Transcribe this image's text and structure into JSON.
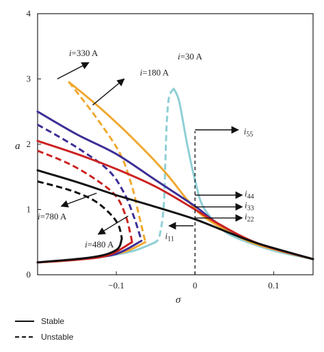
{
  "chart_data": {
    "type": "line",
    "title": "",
    "xlabel": "σ",
    "ylabel": "a",
    "xlim": [
      -0.2,
      0.15
    ],
    "ylim": [
      0,
      4
    ],
    "xticks": [
      -0.1,
      0,
      0.1
    ],
    "xtick_labels": [
      "−0.1",
      "0",
      "0.1"
    ],
    "yticks": [
      0,
      1,
      2,
      3,
      4
    ],
    "ytick_labels": [
      "0",
      "1",
      "2",
      "3",
      "4"
    ],
    "grid": false,
    "legend_position": "bottom-left",
    "legend": [
      {
        "label": "Stable",
        "style": "solid"
      },
      {
        "label": "Unstable",
        "style": "dashed"
      }
    ],
    "series": [
      {
        "current": "i=30 A",
        "color": "#8fcfd6",
        "stable_upper": [
          [
            -0.027,
            2.85
          ],
          [
            -0.02,
            2.65
          ],
          [
            -0.01,
            2.0
          ],
          [
            0.0,
            1.45
          ],
          [
            0.01,
            1.05
          ],
          [
            0.03,
            0.75
          ],
          [
            0.05,
            0.58
          ],
          [
            0.1,
            0.37
          ],
          [
            0.15,
            0.24
          ]
        ],
        "unstable": [
          [
            -0.027,
            2.85
          ],
          [
            -0.033,
            2.72
          ],
          [
            -0.036,
            2.3
          ],
          [
            -0.038,
            1.6
          ],
          [
            -0.04,
            1.0
          ],
          [
            -0.045,
            0.6
          ],
          [
            -0.05,
            0.5
          ]
        ],
        "stable_lower": [
          [
            -0.05,
            0.5
          ],
          [
            -0.08,
            0.36
          ],
          [
            -0.12,
            0.27
          ],
          [
            -0.16,
            0.22
          ],
          [
            -0.2,
            0.19
          ]
        ]
      },
      {
        "current": "i=180 A",
        "color": "#f0a830",
        "stable_upper": [
          [
            -0.16,
            2.95
          ],
          [
            -0.12,
            2.55
          ],
          [
            -0.08,
            2.1
          ],
          [
            -0.04,
            1.6
          ],
          [
            -0.01,
            1.15
          ],
          [
            0.01,
            0.9
          ],
          [
            0.04,
            0.68
          ],
          [
            0.08,
            0.46
          ],
          [
            0.15,
            0.24
          ]
        ],
        "unstable": [
          [
            -0.16,
            2.95
          ],
          [
            -0.125,
            2.4
          ],
          [
            -0.095,
            1.85
          ],
          [
            -0.08,
            1.35
          ],
          [
            -0.072,
            0.95
          ],
          [
            -0.065,
            0.6
          ],
          [
            -0.063,
            0.5
          ]
        ],
        "stable_lower": [
          [
            -0.063,
            0.5
          ],
          [
            -0.09,
            0.35
          ],
          [
            -0.13,
            0.26
          ],
          [
            -0.17,
            0.21
          ],
          [
            -0.2,
            0.19
          ]
        ]
      },
      {
        "current": "i=330 A",
        "color": "#3c2f96",
        "stable_upper": [
          [
            -0.2,
            2.5
          ],
          [
            -0.15,
            2.15
          ],
          [
            -0.1,
            1.85
          ],
          [
            -0.05,
            1.45
          ],
          [
            0.0,
            1.05
          ],
          [
            0.03,
            0.78
          ],
          [
            0.08,
            0.48
          ],
          [
            0.15,
            0.24
          ]
        ],
        "unstable": [
          [
            -0.2,
            2.3
          ],
          [
            -0.15,
            1.95
          ],
          [
            -0.11,
            1.6
          ],
          [
            -0.09,
            1.25
          ],
          [
            -0.078,
            0.9
          ],
          [
            -0.07,
            0.6
          ],
          [
            -0.068,
            0.52
          ]
        ],
        "stable_lower": [
          [
            -0.068,
            0.52
          ],
          [
            -0.1,
            0.32
          ],
          [
            -0.14,
            0.25
          ],
          [
            -0.2,
            0.19
          ]
        ]
      },
      {
        "current": "i=480 A",
        "color": "#cc2222",
        "stable_upper": [
          [
            -0.2,
            2.05
          ],
          [
            -0.15,
            1.85
          ],
          [
            -0.1,
            1.62
          ],
          [
            -0.05,
            1.35
          ],
          [
            0.0,
            1.0
          ],
          [
            0.03,
            0.78
          ],
          [
            0.08,
            0.48
          ],
          [
            0.15,
            0.24
          ]
        ],
        "unstable": [
          [
            -0.2,
            1.9
          ],
          [
            -0.16,
            1.7
          ],
          [
            -0.125,
            1.45
          ],
          [
            -0.1,
            1.2
          ],
          [
            -0.088,
            0.9
          ],
          [
            -0.082,
            0.62
          ],
          [
            -0.08,
            0.5
          ]
        ],
        "stable_lower": [
          [
            -0.08,
            0.5
          ],
          [
            -0.11,
            0.3
          ],
          [
            -0.15,
            0.23
          ],
          [
            -0.2,
            0.19
          ]
        ]
      },
      {
        "current": "i=780 A",
        "color": "#111111",
        "stable_upper": [
          [
            -0.2,
            1.6
          ],
          [
            -0.15,
            1.42
          ],
          [
            -0.1,
            1.22
          ],
          [
            -0.05,
            1.04
          ],
          [
            0.0,
            0.85
          ],
          [
            0.04,
            0.66
          ],
          [
            0.08,
            0.48
          ],
          [
            0.15,
            0.24
          ]
        ],
        "unstable": [
          [
            -0.2,
            1.43
          ],
          [
            -0.16,
            1.3
          ],
          [
            -0.13,
            1.15
          ],
          [
            -0.11,
            0.96
          ],
          [
            -0.098,
            0.78
          ],
          [
            -0.094,
            0.62
          ],
          [
            -0.093,
            0.55
          ]
        ],
        "stable_lower": [
          [
            -0.093,
            0.55
          ],
          [
            -0.1,
            0.38
          ],
          [
            -0.13,
            0.27
          ],
          [
            -0.2,
            0.19
          ]
        ]
      }
    ],
    "reference_line": {
      "x": 0,
      "from_y": 0,
      "to_y": 2.2,
      "style": "dashed"
    },
    "annotations": [
      {
        "text": "i=30 A",
        "from": [
          -0.022,
          3.05
        ],
        "to": [
          -0.022,
          3.05
        ],
        "pos": [
          -0.022,
          3.3
        ]
      },
      {
        "text": "i=180 A",
        "from": [
          -0.13,
          2.6
        ],
        "to": [
          -0.09,
          3.0
        ],
        "pos": [
          -0.07,
          3.05
        ]
      },
      {
        "text": "i=330 A",
        "from": [
          -0.175,
          3.0
        ],
        "to": [
          -0.135,
          3.25
        ],
        "pos": [
          -0.16,
          3.35
        ]
      },
      {
        "text": "i=780 A",
        "from": [
          -0.125,
          1.25
        ],
        "to": [
          -0.17,
          1.05
        ],
        "pos": [
          -0.2,
          0.85
        ]
      },
      {
        "text": "i=480 A",
        "from": [
          -0.085,
          0.9
        ],
        "to": [
          -0.123,
          0.62
        ],
        "pos": [
          -0.14,
          0.42
        ]
      },
      {
        "text": "i55",
        "from": [
          0.0,
          2.22
        ],
        "to": [
          0.055,
          2.22
        ],
        "pos": [
          0.062,
          2.15
        ]
      },
      {
        "text": "i44",
        "from": [
          0.0,
          1.22
        ],
        "to": [
          0.06,
          1.22
        ],
        "pos": [
          0.063,
          1.2
        ]
      },
      {
        "text": "i33",
        "from": [
          0.0,
          1.04
        ],
        "to": [
          0.06,
          1.04
        ],
        "pos": [
          0.063,
          1.02
        ]
      },
      {
        "text": "i22",
        "from": [
          0.0,
          0.87
        ],
        "to": [
          0.06,
          0.87
        ],
        "pos": [
          0.063,
          0.85
        ]
      },
      {
        "text": "i11",
        "from": [
          -0.002,
          0.75
        ],
        "to": [
          -0.033,
          0.75
        ],
        "pos": [
          -0.038,
          0.55
        ]
      }
    ]
  },
  "labels": {
    "i30": "i=30 A",
    "i180": "i=180 A",
    "i330": "i=330 A",
    "i780": "i=780 A",
    "i480": "i=480 A",
    "i55": "i55",
    "i44": "i44",
    "i33": "i33",
    "i22": "i22",
    "i11": "i11"
  }
}
